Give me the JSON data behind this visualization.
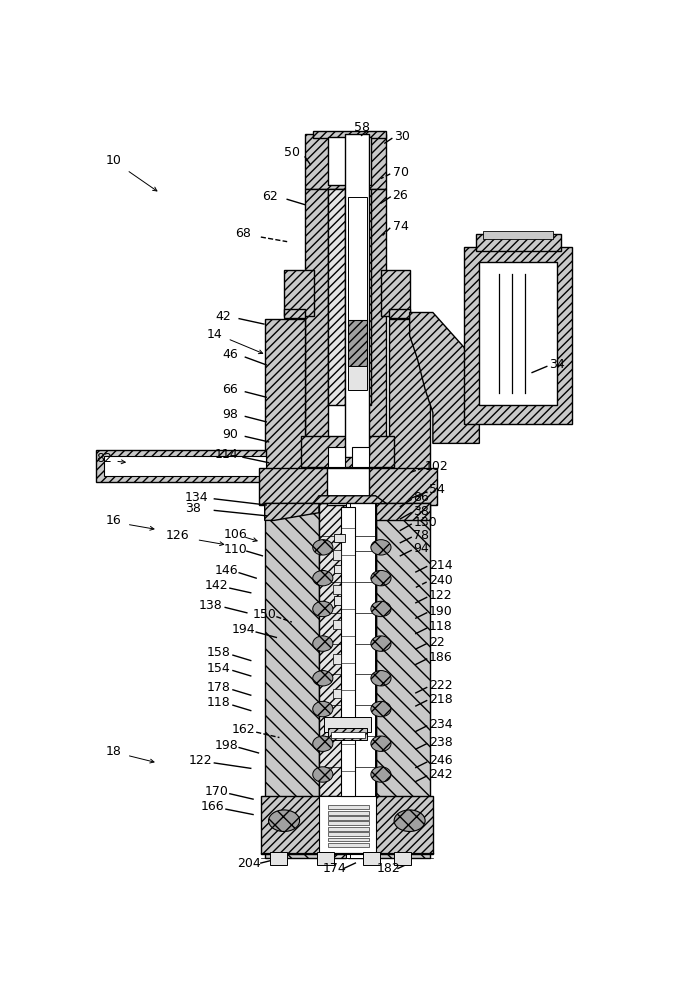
{
  "figsize": [
    6.73,
    10.0
  ],
  "dpi": 100,
  "bg": "#ffffff"
}
